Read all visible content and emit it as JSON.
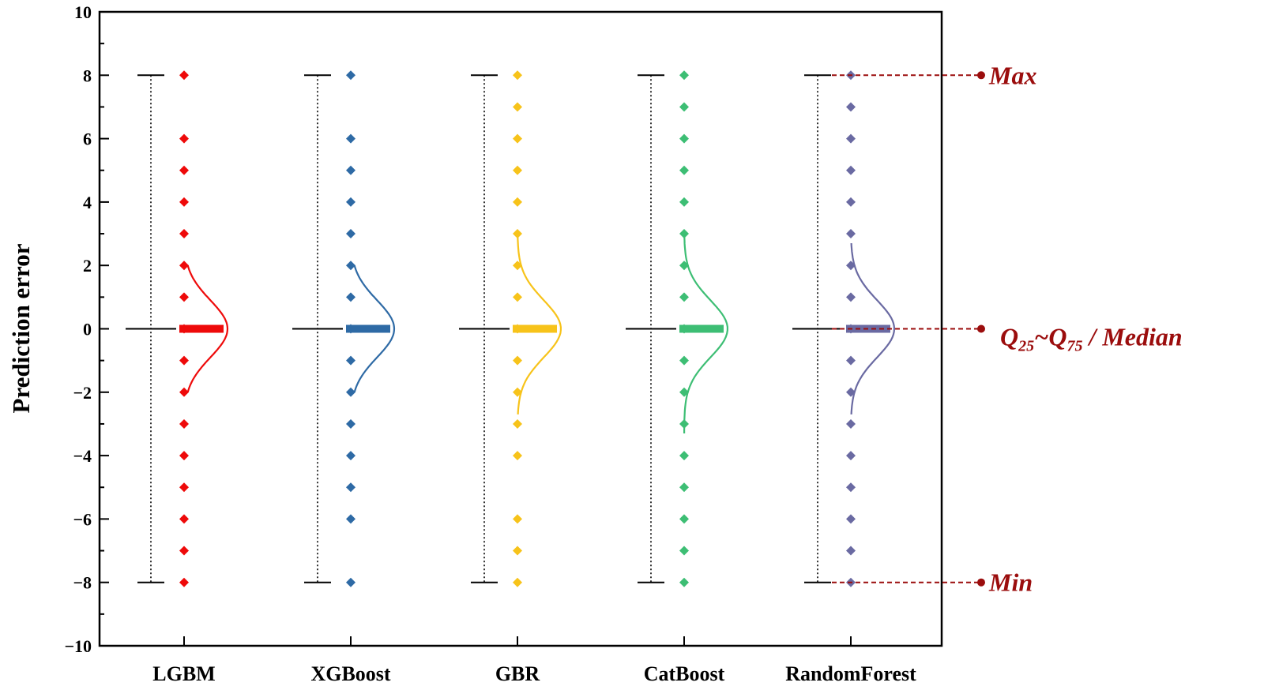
{
  "chart_data": {
    "type": "boxplot_with_scatter",
    "ylabel": "Prediction error",
    "xlabel": "",
    "ylim": [
      -10,
      10
    ],
    "yticks": [
      -10,
      -8,
      -6,
      -4,
      -2,
      0,
      2,
      4,
      6,
      8,
      10
    ],
    "ytick_labels": [
      "−10",
      "−8",
      "−6",
      "−4",
      "−2",
      "0",
      "2",
      "4",
      "6",
      "8",
      "10"
    ],
    "categories": [
      "LGBM",
      "XGBoost",
      "GBR",
      "CatBoost",
      "RandomForest"
    ],
    "series": [
      {
        "name": "LGBM",
        "color": "#ee0a0a",
        "min": -8,
        "q25": 0,
        "median": 0,
        "q75": 0,
        "max": 8,
        "points": [
          8,
          6,
          5,
          4,
          3,
          2,
          1,
          0,
          -1,
          -2,
          -3,
          -4,
          -5,
          -6,
          -7,
          -8
        ],
        "density_range": [
          -2,
          2
        ]
      },
      {
        "name": "XGBoost",
        "color": "#2e6aa5",
        "min": -8,
        "q25": 0,
        "median": 0,
        "q75": 0,
        "max": 8,
        "points": [
          8,
          6,
          5,
          4,
          3,
          2,
          1,
          0,
          -1,
          -2,
          -3,
          -4,
          -5,
          -6,
          -8
        ],
        "density_range": [
          -2,
          2
        ]
      },
      {
        "name": "GBR",
        "color": "#f7c31a",
        "min": -8,
        "q25": 0,
        "median": 0,
        "q75": 0,
        "max": 8,
        "points": [
          8,
          7,
          6,
          5,
          4,
          3,
          2,
          1,
          0,
          -1,
          -2,
          -3,
          -4,
          -6,
          -7,
          -8
        ],
        "density_range": [
          -2.7,
          3
        ]
      },
      {
        "name": "CatBoost",
        "color": "#3dbe74",
        "min": -8,
        "q25": 0,
        "median": 0,
        "q75": 0,
        "max": 8,
        "points": [
          8,
          7,
          6,
          5,
          4,
          3,
          2,
          1,
          0,
          -1,
          -2,
          -3,
          -4,
          -5,
          -6,
          -7,
          -8
        ],
        "density_range": [
          -3.3,
          3
        ]
      },
      {
        "name": "RandomForest",
        "color": "#6a6aa2",
        "min": -8,
        "q25": 0,
        "median": 0,
        "q75": 0,
        "max": 8,
        "points": [
          8,
          7,
          6,
          5,
          4,
          3,
          2,
          1,
          0,
          -1,
          -2,
          -3,
          -4,
          -5,
          -6,
          -7,
          -8
        ],
        "density_range": [
          -2.7,
          2.7
        ]
      }
    ],
    "annotations": {
      "color": "#9b0d0d",
      "max_label": "Max",
      "min_label": "Min",
      "q_label_q": "Q",
      "q_label_sub1": "25",
      "q_label_tilde": "~",
      "q_label_sub2": "75",
      "q_label_rest": " / Median"
    }
  }
}
